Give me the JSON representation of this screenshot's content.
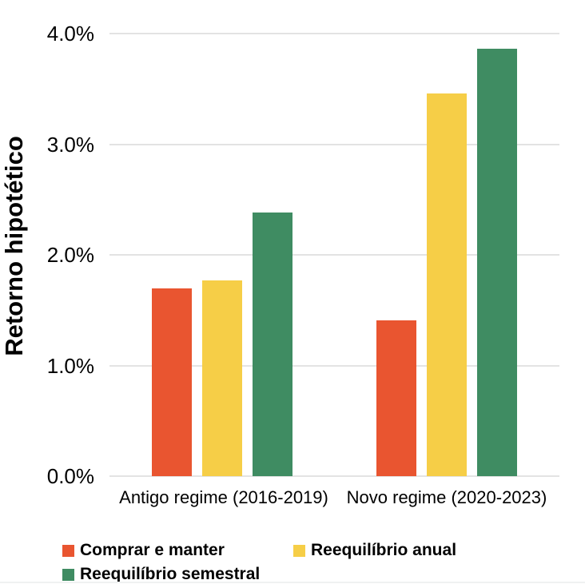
{
  "chart_data": {
    "type": "bar",
    "title": "",
    "xlabel": "",
    "ylabel": "Retorno hipotético",
    "categories": [
      "Antigo regime (2016-2019)",
      "Novo regime (2020-2023)"
    ],
    "series": [
      {
        "name": "Comprar e manter",
        "color": "#E95530",
        "values": [
          1.7,
          1.41
        ]
      },
      {
        "name": "Reequilíbrio anual",
        "color": "#F6CE47",
        "values": [
          1.77,
          3.46
        ]
      },
      {
        "name": "Reequilíbrio semestral",
        "color": "#3F8C62",
        "values": [
          2.38,
          3.86
        ]
      }
    ],
    "y_ticks": [
      {
        "value": 0.0,
        "label": "0.0%"
      },
      {
        "value": 1.0,
        "label": "1.0%"
      },
      {
        "value": 2.0,
        "label": "2.0%"
      },
      {
        "value": 3.0,
        "label": "3.0%"
      },
      {
        "value": 4.0,
        "label": "4.0%"
      }
    ],
    "ylim": [
      0,
      4
    ],
    "grid": true,
    "legend_position": "bottom",
    "gridline_color": "#E3E3E3",
    "text_color": "#000000",
    "background_color": "#FFFFFF"
  }
}
